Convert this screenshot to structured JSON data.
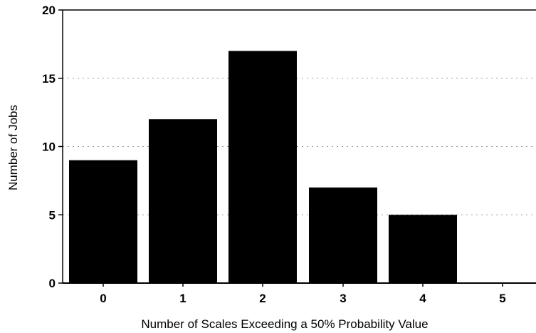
{
  "chart_data": {
    "type": "bar",
    "categories": [
      "0",
      "1",
      "2",
      "3",
      "4",
      "5"
    ],
    "values": [
      9,
      12,
      17,
      7,
      5,
      0
    ],
    "title": "",
    "xlabel": "Number of Scales Exceeding  a 50% Probability Value",
    "ylabel": "Number of Jobs",
    "ylim": [
      0,
      20
    ],
    "yticks": [
      0,
      5,
      10,
      15,
      20
    ],
    "grid": "horizontal dotted",
    "legend": "none",
    "colors": {
      "bar": "#000000",
      "axis": "#000000",
      "grid": "#9a9a9a"
    }
  }
}
